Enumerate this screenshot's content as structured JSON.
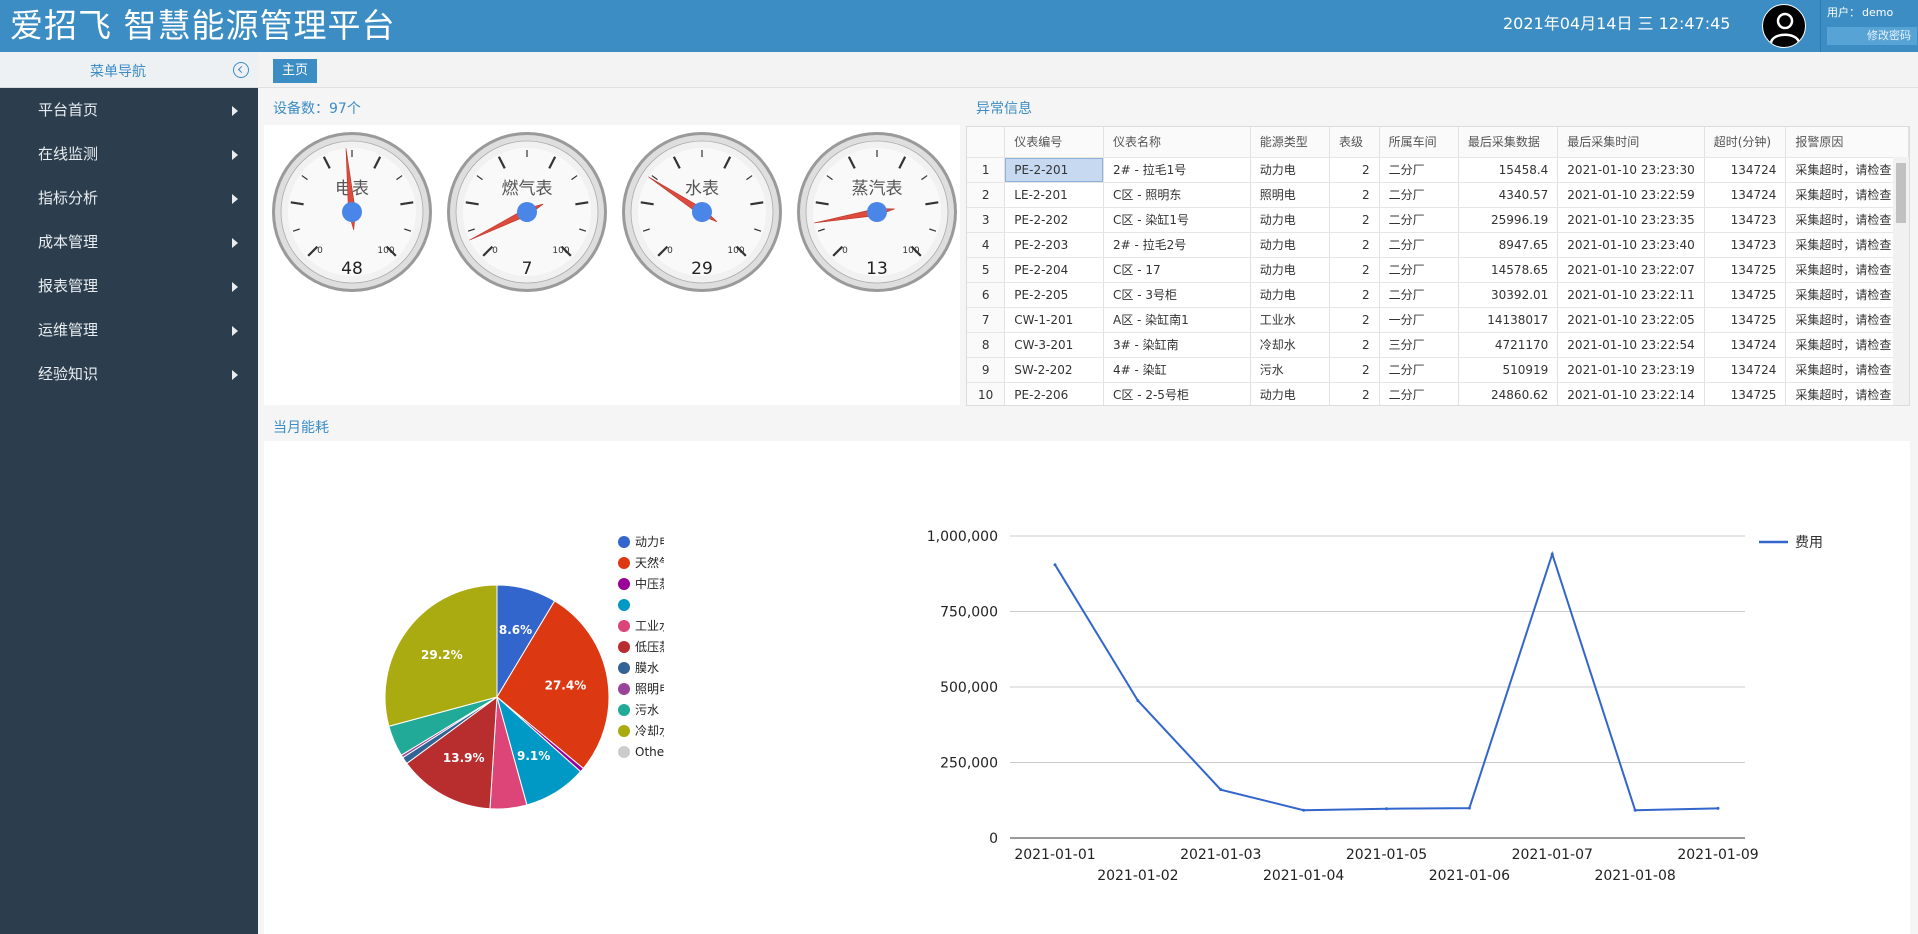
{
  "app": {
    "title": "爱招飞 智慧能源管理平台",
    "datetime": "2021年04月14日 三 12:47:45",
    "user_label": "用户：",
    "user_name": "demo",
    "change_password": "修改密码"
  },
  "sidebar": {
    "header": "菜单导航",
    "items": [
      {
        "label": "平台首页"
      },
      {
        "label": "在线监测"
      },
      {
        "label": "指标分析"
      },
      {
        "label": "成本管理"
      },
      {
        "label": "报表管理"
      },
      {
        "label": "运维管理"
      },
      {
        "label": "经验知识"
      }
    ]
  },
  "tabs": [
    {
      "label": "主页"
    }
  ],
  "device_panel": {
    "title": "设备数：97个",
    "gauges": [
      {
        "label": "电表",
        "value": 48,
        "min": "0",
        "max": "100"
      },
      {
        "label": "燃气表",
        "value": 7,
        "min": "0",
        "max": "100"
      },
      {
        "label": "水表",
        "value": 29,
        "min": "0",
        "max": "100"
      },
      {
        "label": "蒸汽表",
        "value": 13,
        "min": "0",
        "max": "100"
      }
    ]
  },
  "alarm_panel": {
    "title": "异常信息",
    "columns": [
      "",
      "仪表编号",
      "仪表名称",
      "能源类型",
      "表级",
      "所属车间",
      "最后采集数据",
      "最后采集时间",
      "超时(分钟)",
      "报警原因"
    ],
    "rows": [
      [
        "1",
        "PE-2-201",
        "2# - 拉毛1号",
        "动力电",
        "2",
        "二分厂",
        "15458.4",
        "2021-01-10 23:23:30",
        "134724",
        "采集超时，请检查"
      ],
      [
        "2",
        "LE-2-201",
        "C区 - 照明东",
        "照明电",
        "2",
        "二分厂",
        "4340.57",
        "2021-01-10 23:22:59",
        "134724",
        "采集超时，请检查"
      ],
      [
        "3",
        "PE-2-202",
        "C区 - 染缸1号",
        "动力电",
        "2",
        "二分厂",
        "25996.19",
        "2021-01-10 23:23:35",
        "134723",
        "采集超时，请检查"
      ],
      [
        "4",
        "PE-2-203",
        "2# - 拉毛2号",
        "动力电",
        "2",
        "二分厂",
        "8947.65",
        "2021-01-10 23:23:40",
        "134723",
        "采集超时，请检查"
      ],
      [
        "5",
        "PE-2-204",
        "C区 - 17",
        "动力电",
        "2",
        "二分厂",
        "14578.65",
        "2021-01-10 23:22:07",
        "134725",
        "采集超时，请检查"
      ],
      [
        "6",
        "PE-2-205",
        "C区 - 3号柜",
        "动力电",
        "2",
        "二分厂",
        "30392.01",
        "2021-01-10 23:22:11",
        "134725",
        "采集超时，请检查"
      ],
      [
        "7",
        "CW-1-201",
        "A区 - 染缸南1",
        "工业水",
        "2",
        "一分厂",
        "14138017",
        "2021-01-10 23:22:05",
        "134725",
        "采集超时，请检查"
      ],
      [
        "8",
        "CW-3-201",
        "3# - 染缸南",
        "冷却水",
        "2",
        "三分厂",
        "4721170",
        "2021-01-10 23:22:54",
        "134724",
        "采集超时，请检查"
      ],
      [
        "9",
        "SW-2-202",
        "4# - 染缸",
        "污水",
        "2",
        "二分厂",
        "510919",
        "2021-01-10 23:23:19",
        "134724",
        "采集超时，请检查"
      ],
      [
        "10",
        "PE-2-206",
        "C区 - 2-5号柜",
        "动力电",
        "2",
        "二分厂",
        "24860.62",
        "2021-01-10 23:22:14",
        "134725",
        "采集超时，请检查"
      ]
    ]
  },
  "energy_panel": {
    "title": "当月能耗"
  },
  "chart_data": [
    {
      "type": "pie",
      "legend_position": "right",
      "slices": [
        {
          "name": "动力电",
          "value": 8.6,
          "label": "8.6%",
          "color": "#3366cc"
        },
        {
          "name": "天然气",
          "value": 27.4,
          "label": "27.4%",
          "color": "#dc3912"
        },
        {
          "name": "中压蒸汽",
          "value": 0.6,
          "label": "",
          "color": "#990099"
        },
        {
          "name": "",
          "value": 9.1,
          "label": "9.1%",
          "color": "#0099c6"
        },
        {
          "name": "工业水",
          "value": 5.3,
          "label": "",
          "color": "#dd4477"
        },
        {
          "name": "低压蒸汽",
          "value": 13.9,
          "label": "13.9%",
          "color": "#b82e2e"
        },
        {
          "name": "膜水",
          "value": 1.0,
          "label": "",
          "color": "#316395"
        },
        {
          "name": "照明电",
          "value": 0.4,
          "label": "",
          "color": "#994499"
        },
        {
          "name": "污水",
          "value": 4.5,
          "label": "",
          "color": "#22aa99"
        },
        {
          "name": "冷却水",
          "value": 29.2,
          "label": "29.2%",
          "color": "#aaaa11"
        },
        {
          "name": "Other",
          "value": 0.0,
          "label": "",
          "color": "#cccccc"
        }
      ]
    },
    {
      "type": "line",
      "x": [
        "2021-01-01",
        "2021-01-02",
        "2021-01-03",
        "2021-01-04",
        "2021-01-05",
        "2021-01-06",
        "2021-01-07",
        "2021-01-08",
        "2021-01-09"
      ],
      "series": [
        {
          "name": "费用",
          "color": "#3366cc",
          "values": [
            905000,
            455000,
            160000,
            92000,
            97000,
            99000,
            940000,
            92000,
            98000
          ]
        }
      ],
      "ylim": [
        0,
        1000000
      ],
      "yticks": [
        "0",
        "250,000",
        "500,000",
        "750,000",
        "1,000,000"
      ],
      "grid": true,
      "legend_position": "right"
    }
  ]
}
